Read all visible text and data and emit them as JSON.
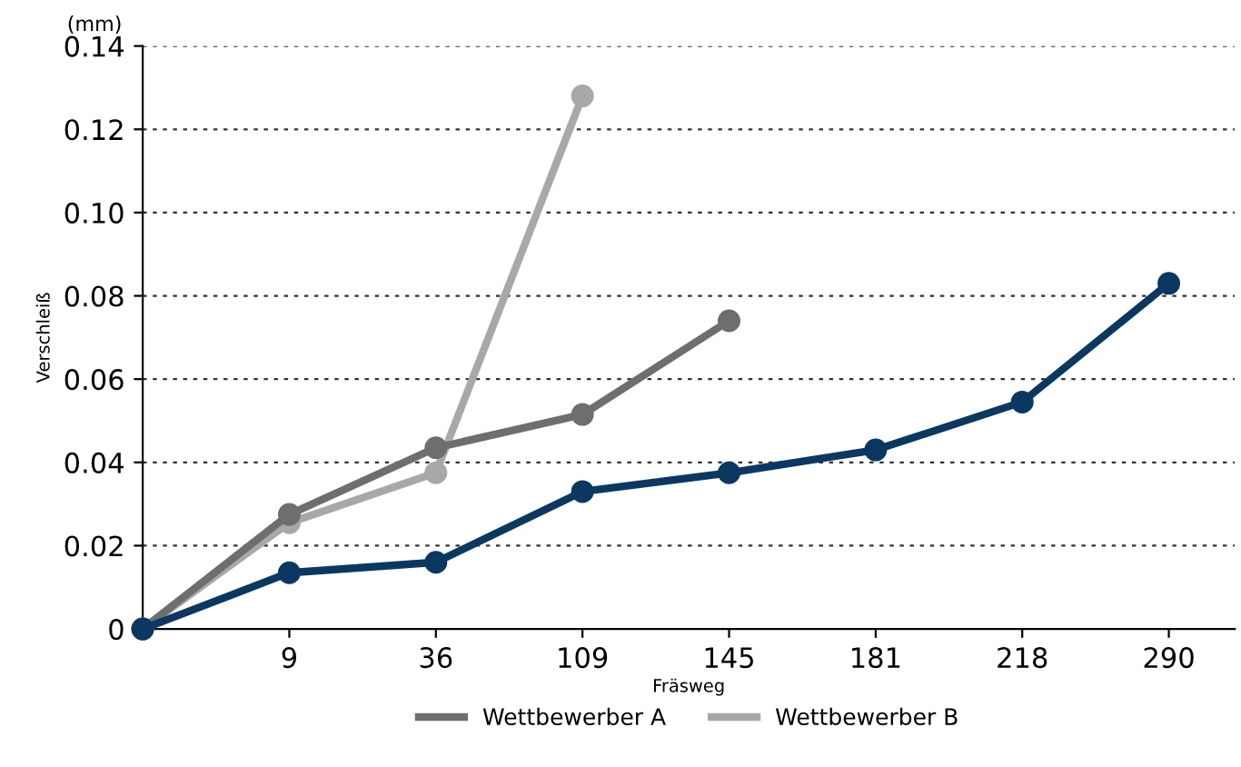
{
  "chart_data": {
    "type": "line",
    "xlabel": "Fräsweg",
    "ylabel": "Verschleiß",
    "annotations": [
      "(mm)"
    ],
    "categories": [
      null,
      "9",
      "36",
      "109",
      "145",
      "181",
      "218",
      "290"
    ],
    "series": [
      {
        "color": "#0b3861",
        "values": [
          0,
          0.0135,
          0.016,
          0.033,
          0.0375,
          0.043,
          0.0545,
          0.083
        ]
      },
      {
        "name": "Wettbewerber A",
        "color": "#6e6e6e",
        "values": [
          0,
          0.0275,
          0.0435,
          0.0515,
          0.074,
          null,
          null,
          null
        ]
      },
      {
        "name": "Wettbewerber B",
        "color": "#a8a8a8",
        "values": [
          0,
          0.0255,
          0.0375,
          0.128,
          null,
          null,
          null,
          null
        ]
      }
    ],
    "ylim": [
      0,
      0.14
    ],
    "yticks": [
      {
        "value": 0,
        "label": "0"
      },
      0.02,
      0.04,
      0.06,
      0.08,
      {
        "value": 0.1,
        "label": "0.10"
      },
      0.12,
      0.14
    ],
    "grid": "y",
    "legend": "bottom",
    "marker": "circle",
    "line_style": "solid"
  }
}
